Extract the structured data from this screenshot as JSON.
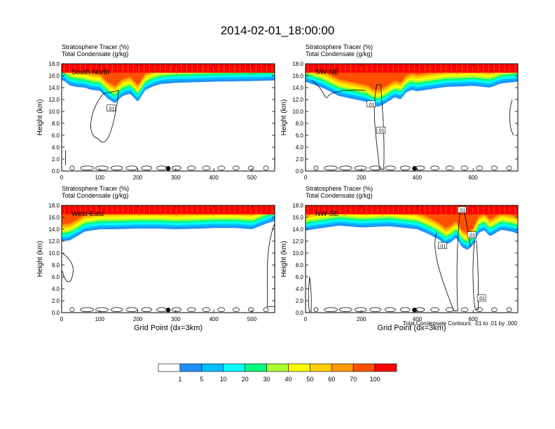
{
  "figure": {
    "title": "2014-02-01_18:00:00",
    "footnote": "Total Condensate Contours: .01 to .01 by .000"
  },
  "colors": {
    "scale": [
      "#ffffff",
      "#1e90ff",
      "#00bfff",
      "#00ffff",
      "#00ff7f",
      "#00ee00",
      "#adff2f",
      "#ffff00",
      "#ffcc00",
      "#ff9900",
      "#ff5000",
      "#ff0000"
    ],
    "contour": "#000000"
  },
  "colorbar": {
    "labels": [
      "1",
      "5",
      "10",
      "20",
      "30",
      "40",
      "50",
      "60",
      "70",
      "100"
    ]
  },
  "chart_data": [
    {
      "type": "heatmap",
      "name": "South-North",
      "label": "South-North",
      "title_lines": [
        "Stratosphere Tracer   (%)",
        "Total Condensate   (g/kg)"
      ],
      "ylabel": "Height (km)",
      "xlabel": "",
      "xlim": [
        0,
        560
      ],
      "ylim": [
        0,
        18
      ],
      "xticks": [
        "0",
        "100",
        "200",
        "300",
        "400",
        "500"
      ],
      "xtick_values": [
        0,
        100,
        200,
        300,
        400,
        500
      ],
      "yticks": [
        "0.0",
        "2.0",
        "4.0",
        "6.0",
        "8.0",
        "10.0",
        "12.0",
        "14.0",
        "16.0",
        "18.0"
      ],
      "marker_x": 280,
      "contour_labels": [
        {
          "text": ".01",
          "x": 130,
          "y": 10.5
        }
      ],
      "tracer_profile": {
        "x": [
          0,
          10,
          20,
          40,
          60,
          80,
          100,
          120,
          140,
          160,
          180,
          200,
          220,
          240,
          260,
          300,
          400,
          500,
          560
        ],
        "bottom_km": [
          15.3,
          15.0,
          14.4,
          14.1,
          14.0,
          13.6,
          13.5,
          12.2,
          11.4,
          12.6,
          13.0,
          11.6,
          13.6,
          14.2,
          14.6,
          14.8,
          15.0,
          15.1,
          15.2
        ]
      }
    },
    {
      "type": "heatmap",
      "name": "SW-NE",
      "label": "SW-NE",
      "title_lines": [
        "Stratosphere Tracer   (%)",
        "Total Condensate   (g/kg)"
      ],
      "ylabel": "Height (km)",
      "xlabel": "",
      "xlim": [
        0,
        760
      ],
      "ylim": [
        0,
        18
      ],
      "xticks": [
        "0",
        "200",
        "400",
        "600"
      ],
      "xtick_values": [
        0,
        200,
        400,
        600
      ],
      "yticks": [
        "0.0",
        "2.0",
        "4.0",
        "6.0",
        "8.0",
        "10.0",
        "12.0",
        "14.0",
        "16.0",
        "18.0"
      ],
      "marker_x": 390,
      "contour_labels": [
        {
          "text": ".01",
          "x": 235,
          "y": 11.2
        },
        {
          "text": ".01",
          "x": 270,
          "y": 6.8
        }
      ],
      "tracer_profile": {
        "x": [
          0,
          60,
          120,
          180,
          220,
          240,
          260,
          280,
          300,
          320,
          340,
          360,
          380,
          400,
          500,
          600,
          660,
          700,
          760
        ],
        "bottom_km": [
          15.0,
          14.0,
          12.6,
          12.0,
          11.6,
          11.0,
          10.8,
          11.2,
          11.8,
          12.4,
          12.0,
          13.2,
          13.6,
          13.4,
          14.1,
          14.3,
          14.0,
          14.7,
          15.0
        ]
      }
    },
    {
      "type": "heatmap",
      "name": "West-East",
      "label": "West-East",
      "title_lines": [
        "Stratosphere Tracer   (%)",
        "Total Condensate   (g/kg)"
      ],
      "ylabel": "Height (km)",
      "xlabel": "Grid Point (dx=3km)",
      "xlim": [
        0,
        560
      ],
      "ylim": [
        0,
        18
      ],
      "xticks": [
        "0",
        "100",
        "200",
        "300",
        "400",
        "500"
      ],
      "xtick_values": [
        0,
        100,
        200,
        300,
        400,
        500
      ],
      "yticks": [
        "0.0",
        "2.0",
        "4.0",
        "6.0",
        "8.0",
        "10.0",
        "12.0",
        "14.0",
        "16.0",
        "18.0"
      ],
      "marker_x": 280,
      "contour_labels": [],
      "tracer_profile": {
        "x": [
          0,
          20,
          40,
          60,
          80,
          100,
          140,
          200,
          260,
          300,
          360,
          400,
          460,
          500,
          540,
          560
        ],
        "bottom_km": [
          12.0,
          12.1,
          12.8,
          13.6,
          13.8,
          14.0,
          14.0,
          14.1,
          14.1,
          14.0,
          14.1,
          14.2,
          14.2,
          14.0,
          15.0,
          15.4
        ]
      }
    },
    {
      "type": "heatmap",
      "name": "NW-SE",
      "label": "NW-SE",
      "title_lines": [
        "Stratosphere Tracer   (%)",
        "Total Condensate   (g/kg)"
      ],
      "ylabel": "Height (km)",
      "xlabel": "Grid Point (dx=3km)",
      "xlim": [
        0,
        760
      ],
      "ylim": [
        0,
        18
      ],
      "xticks": [
        "0",
        "200",
        "400",
        "600"
      ],
      "xtick_values": [
        0,
        200,
        400,
        600
      ],
      "yticks": [
        "0.0",
        "2.0",
        "4.0",
        "6.0",
        "8.0",
        "10.0",
        "12.0",
        "14.0",
        "16.0",
        "18.0"
      ],
      "marker_x": 390,
      "contour_labels": [
        {
          "text": ".01",
          "x": 490,
          "y": 11.2
        },
        {
          "text": ".01",
          "x": 560,
          "y": 17.2
        },
        {
          "text": ".01",
          "x": 595,
          "y": 13.0
        },
        {
          "text": ".01",
          "x": 630,
          "y": 2.4
        }
      ],
      "tracer_profile": {
        "x": [
          0,
          60,
          120,
          200,
          300,
          400,
          440,
          480,
          500,
          520,
          540,
          560,
          580,
          600,
          620,
          640,
          660,
          700,
          740,
          760
        ],
        "bottom_km": [
          13.8,
          14.2,
          14.6,
          14.3,
          14.5,
          14.0,
          13.2,
          12.2,
          11.4,
          11.8,
          12.6,
          11.0,
          10.5,
          11.4,
          13.4,
          13.8,
          12.8,
          13.9,
          13.6,
          13.2
        ]
      }
    }
  ]
}
